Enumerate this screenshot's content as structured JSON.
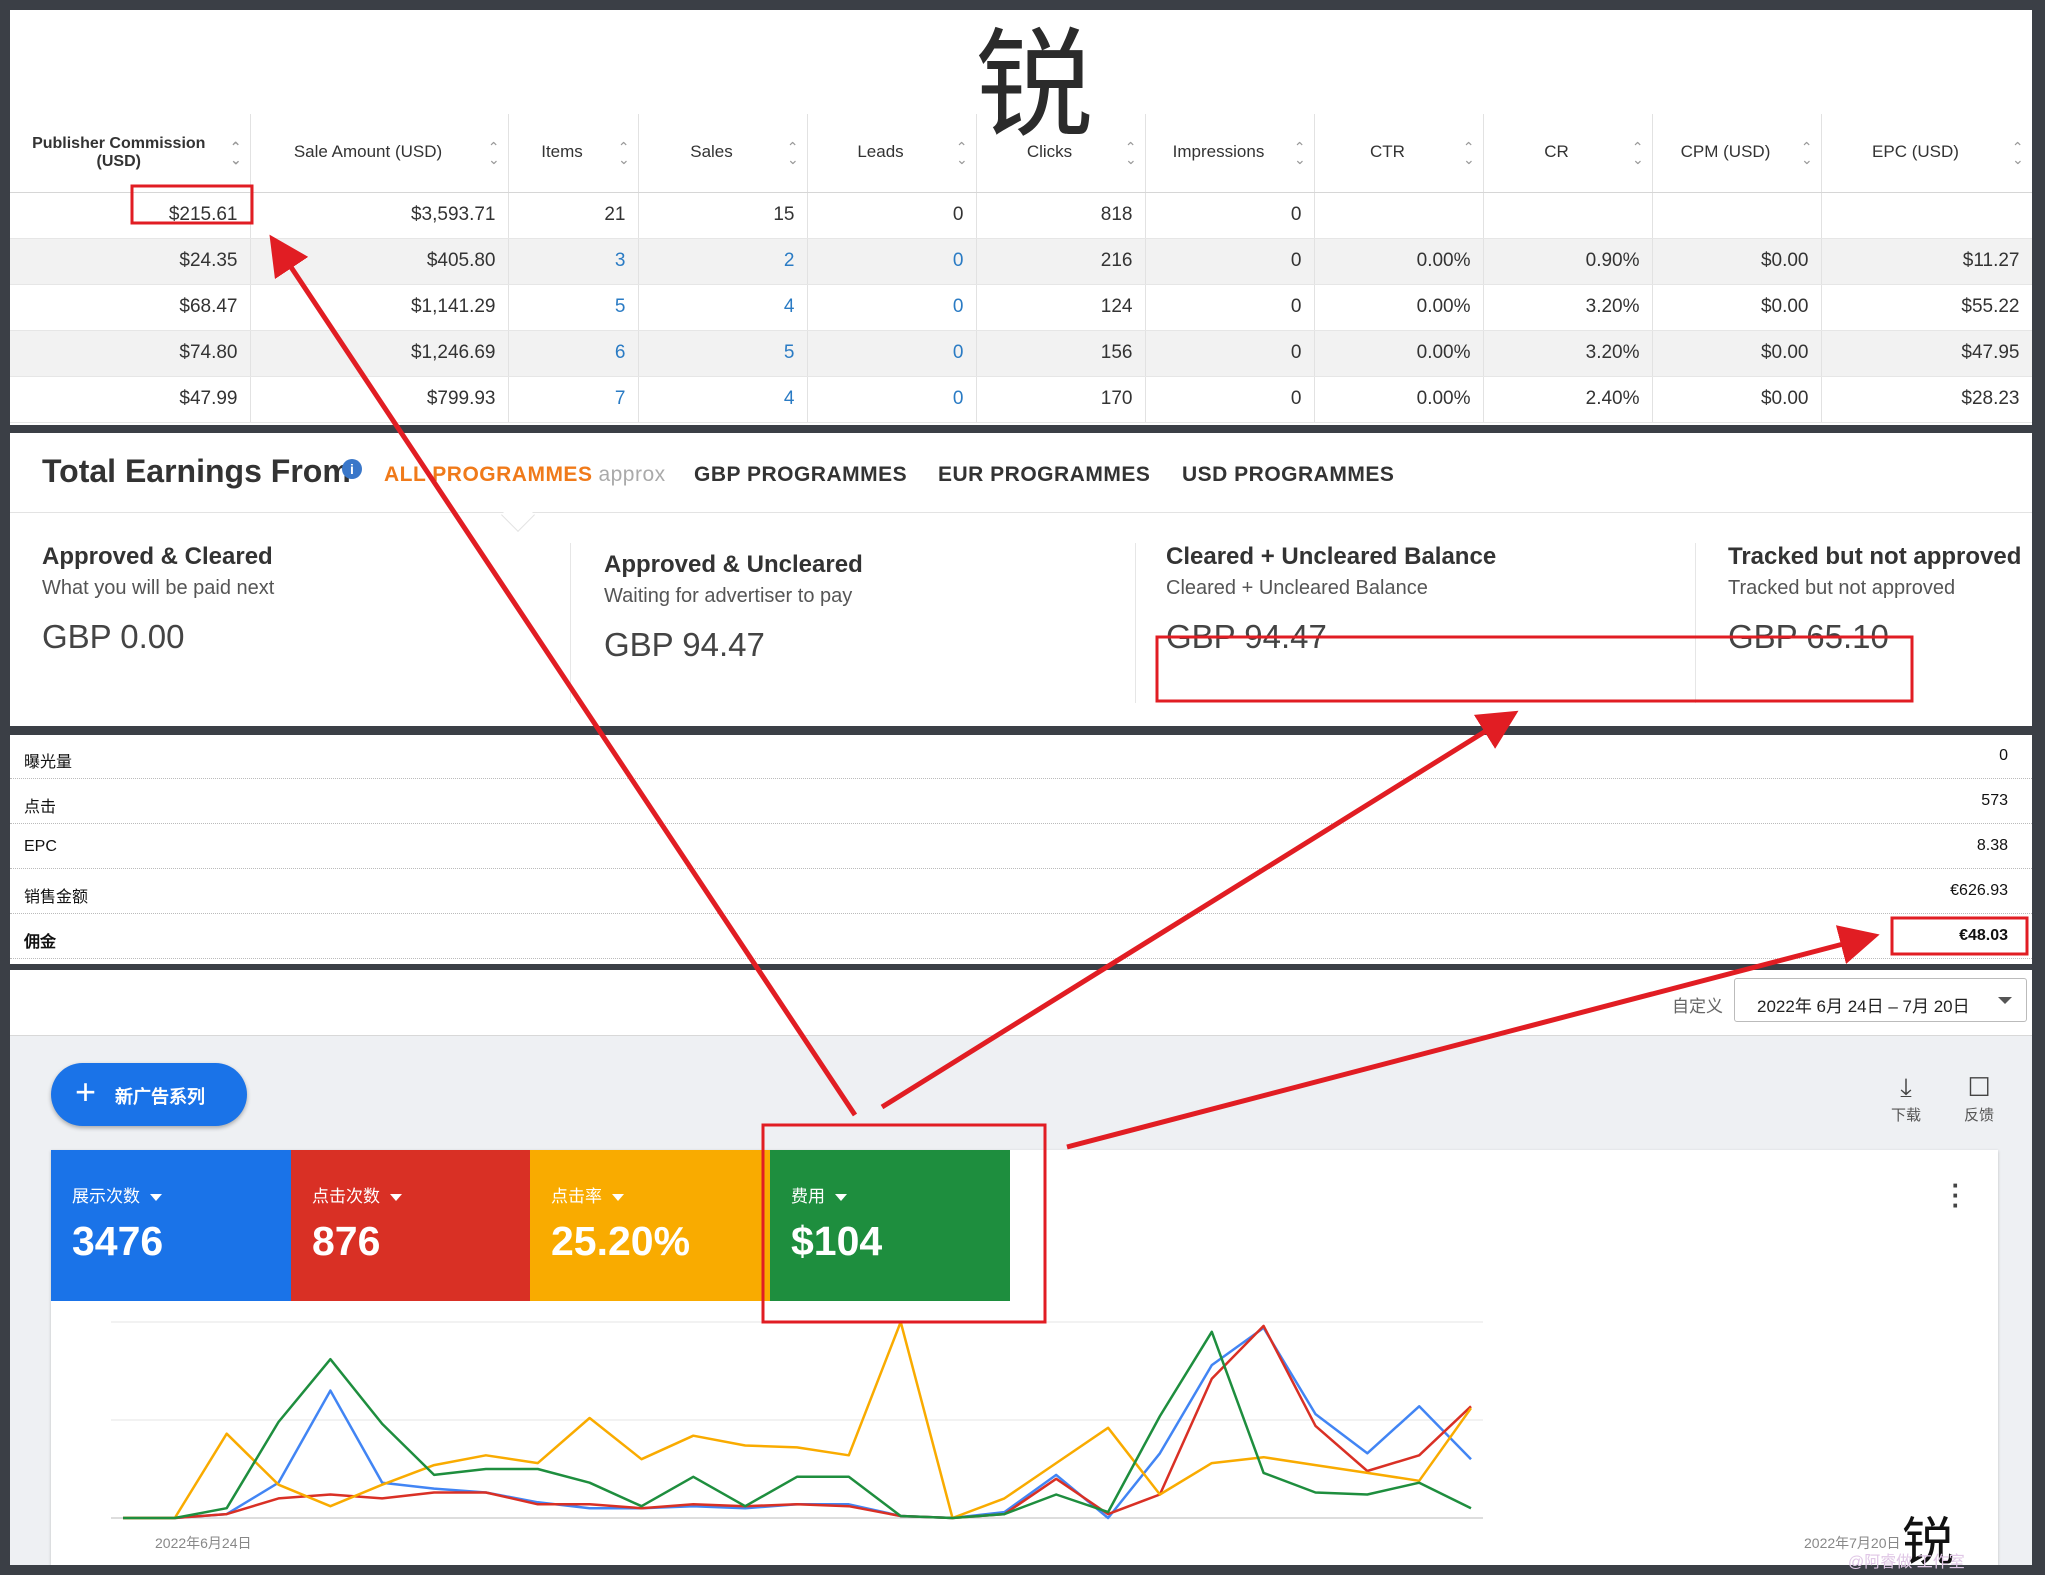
{
  "big_title": "锐",
  "commission_table": {
    "headers": [
      "Publisher Commission (USD)",
      "Sale Amount (USD)",
      "Items",
      "Sales",
      "Leads",
      "Clicks",
      "Impressions",
      "CTR",
      "CR",
      "CPM (USD)",
      "EPC (USD)"
    ],
    "rows": [
      [
        "$215.61",
        "$3,593.71",
        "21",
        "15",
        "0",
        "818",
        "0",
        "",
        "",
        "",
        ""
      ],
      [
        "$24.35",
        "$405.80",
        "3",
        "2",
        "0",
        "216",
        "0",
        "0.00%",
        "0.90%",
        "$0.00",
        "$11.27"
      ],
      [
        "$68.47",
        "$1,141.29",
        "5",
        "4",
        "0",
        "124",
        "0",
        "0.00%",
        "3.20%",
        "$0.00",
        "$55.22"
      ],
      [
        "$74.80",
        "$1,246.69",
        "6",
        "5",
        "0",
        "156",
        "0",
        "0.00%",
        "3.20%",
        "$0.00",
        "$47.95"
      ],
      [
        "$47.99",
        "$799.93",
        "7",
        "4",
        "0",
        "170",
        "0",
        "0.00%",
        "2.40%",
        "$0.00",
        "$28.23"
      ]
    ]
  },
  "earnings": {
    "title": "Total Earnings From",
    "tabs": {
      "all": "ALL PROGRAMMES",
      "all_suffix": "approx",
      "gbp": "GBP PROGRAMMES",
      "eur": "EUR PROGRAMMES",
      "usd": "USD PROGRAMMES"
    },
    "columns": [
      {
        "title": "Approved & Cleared",
        "subtitle": "What you will be paid next",
        "value": "GBP 0.00"
      },
      {
        "title": "Approved & Uncleared",
        "subtitle": "Waiting for advertiser to pay",
        "value": "GBP 94.47"
      },
      {
        "title": "Cleared + Uncleared Balance",
        "subtitle": "Cleared + Uncleared Balance",
        "value": "GBP 94.47"
      },
      {
        "title": "Tracked but not approved",
        "subtitle": "Tracked but not approved",
        "value": "GBP 65.10"
      }
    ]
  },
  "eur_summary": [
    {
      "label": "曝光量",
      "value": "0"
    },
    {
      "label": "点击",
      "value": "573"
    },
    {
      "label": "EPC",
      "value": "8.38"
    },
    {
      "label": "销售金额",
      "value": "€626.93"
    },
    {
      "label": "佣金",
      "value": "€48.03"
    }
  ],
  "ads": {
    "custom_label": "自定义",
    "date_range": "2022年 6月 24日 – 7月 20日",
    "new_campaign": "新广告系列",
    "download": "下载",
    "feedback": "反馈",
    "metrics": [
      {
        "label": "展示次数",
        "value": "3476",
        "color": "#1a73e8"
      },
      {
        "label": "点击次数",
        "value": "876",
        "color": "#d93025"
      },
      {
        "label": "点击率",
        "value": "25.20%",
        "color": "#f9ab00"
      },
      {
        "label": "费用",
        "value": "$104",
        "color": "#1e8e3e"
      }
    ],
    "axis_start": "2022年6月24日",
    "axis_end": "2022年7月20日"
  },
  "chart_data": {
    "type": "line",
    "x_start": "2022-06-24",
    "x_end": "2022-07-20",
    "ylim": [
      0,
      100
    ],
    "series": [
      {
        "color": "#4285f4",
        "values": [
          0,
          0,
          2,
          18,
          65,
          18,
          15,
          13,
          8,
          5,
          5,
          6,
          5,
          7,
          7,
          1,
          0,
          3,
          22,
          0,
          33,
          78,
          97,
          53,
          33,
          57,
          30
        ]
      },
      {
        "color": "#d93025",
        "values": [
          0,
          0,
          2,
          10,
          12,
          10,
          13,
          13,
          7,
          7,
          5,
          7,
          6,
          7,
          6,
          1,
          0,
          2,
          20,
          2,
          12,
          71,
          98,
          47,
          24,
          32,
          57
        ]
      },
      {
        "color": "#f9ab00",
        "values": [
          0,
          0,
          43,
          17,
          6,
          17,
          27,
          32,
          28,
          51,
          30,
          42,
          37,
          36,
          32,
          100,
          0,
          10,
          28,
          46,
          12,
          28,
          31,
          27,
          23,
          19,
          56
        ]
      },
      {
        "color": "#1e8e3e",
        "values": [
          0,
          0,
          5,
          49,
          81,
          48,
          22,
          25,
          25,
          18,
          6,
          21,
          6,
          21,
          21,
          1,
          0,
          2,
          12,
          3,
          52,
          95,
          23,
          13,
          12,
          18,
          5
        ]
      }
    ]
  },
  "corner_glyph": "锐",
  "watermark": "@阿睿做 工作室"
}
